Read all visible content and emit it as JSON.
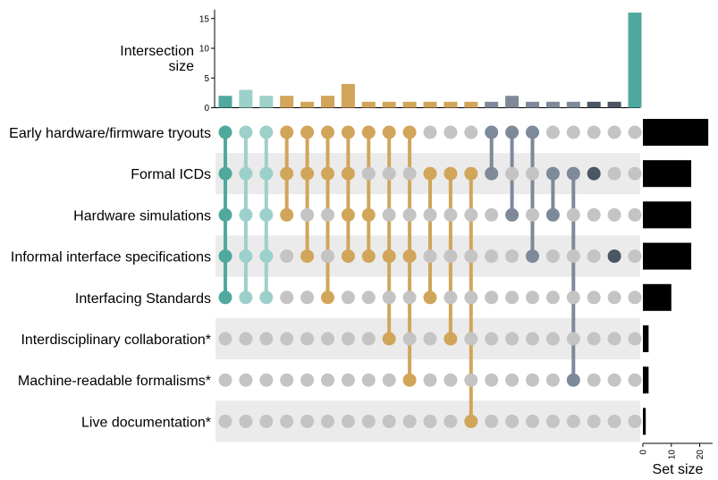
{
  "chart_data": {
    "type": "upset",
    "y_title_lines": [
      "Intersection",
      "size"
    ],
    "bar_axis_ticks": [
      0,
      5,
      10,
      15
    ],
    "bar_axis_max": 16.5,
    "set_axis_title": "Set size",
    "set_axis_ticks": [
      "0",
      "10",
      "20"
    ],
    "set_axis_max": 24.5,
    "sets": [
      {
        "name": "Early hardware/firmware tryouts",
        "size": 23
      },
      {
        "name": "Formal ICDs",
        "size": 17
      },
      {
        "name": "Hardware simulations",
        "size": 17
      },
      {
        "name": "Informal interface specifications",
        "size": 17
      },
      {
        "name": "Interfacing Standards",
        "size": 10
      },
      {
        "name": "Interdisciplinary collaboration*",
        "size": 2
      },
      {
        "name": "Machine-readable formalisms*",
        "size": 2
      },
      {
        "name": "Live documentation*",
        "size": 1
      }
    ],
    "intersections": [
      {
        "sets": [
          0,
          1,
          2,
          3,
          4
        ],
        "size": 2,
        "color": "#4fa99c"
      },
      {
        "sets": [
          0,
          1,
          2,
          3,
          4
        ],
        "size": 3,
        "color": "#9dd0ca"
      },
      {
        "sets": [
          0,
          1,
          2,
          3,
          4
        ],
        "size": 2,
        "color": "#9dd0ca"
      },
      {
        "sets": [
          0,
          1,
          2
        ],
        "size": 2,
        "color": "#d1a55a"
      },
      {
        "sets": [
          0,
          1,
          3
        ],
        "size": 1,
        "color": "#d1a55a"
      },
      {
        "sets": [
          0,
          1,
          4
        ],
        "size": 2,
        "color": "#d1a55a"
      },
      {
        "sets": [
          0,
          1,
          2,
          3
        ],
        "size": 4,
        "color": "#d1a55a"
      },
      {
        "sets": [
          0,
          2,
          3
        ],
        "size": 1,
        "color": "#d1a55a"
      },
      {
        "sets": [
          0,
          3,
          5
        ],
        "size": 1,
        "color": "#d1a55a"
      },
      {
        "sets": [
          0,
          3,
          6
        ],
        "size": 1,
        "color": "#d1a55a"
      },
      {
        "sets": [
          1,
          4
        ],
        "size": 1,
        "color": "#d1a55a"
      },
      {
        "sets": [
          1,
          5
        ],
        "size": 1,
        "color": "#d1a55a"
      },
      {
        "sets": [
          1,
          7
        ],
        "size": 1,
        "color": "#d1a55a"
      },
      {
        "sets": [
          0,
          1
        ],
        "size": 1,
        "color": "#7e8a99"
      },
      {
        "sets": [
          0,
          2
        ],
        "size": 2,
        "color": "#7e8a99"
      },
      {
        "sets": [
          0,
          3
        ],
        "size": 1,
        "color": "#7e8a99"
      },
      {
        "sets": [
          1,
          2
        ],
        "size": 1,
        "color": "#7e8a99"
      },
      {
        "sets": [
          1,
          6
        ],
        "size": 1,
        "color": "#7e8a99"
      },
      {
        "sets": [
          1
        ],
        "size": 1,
        "color": "#4a5663"
      },
      {
        "sets": [
          3
        ],
        "size": 1,
        "color": "#4a5663"
      },
      {
        "sets": [],
        "size": 16,
        "color": "#4fa99c"
      }
    ]
  }
}
